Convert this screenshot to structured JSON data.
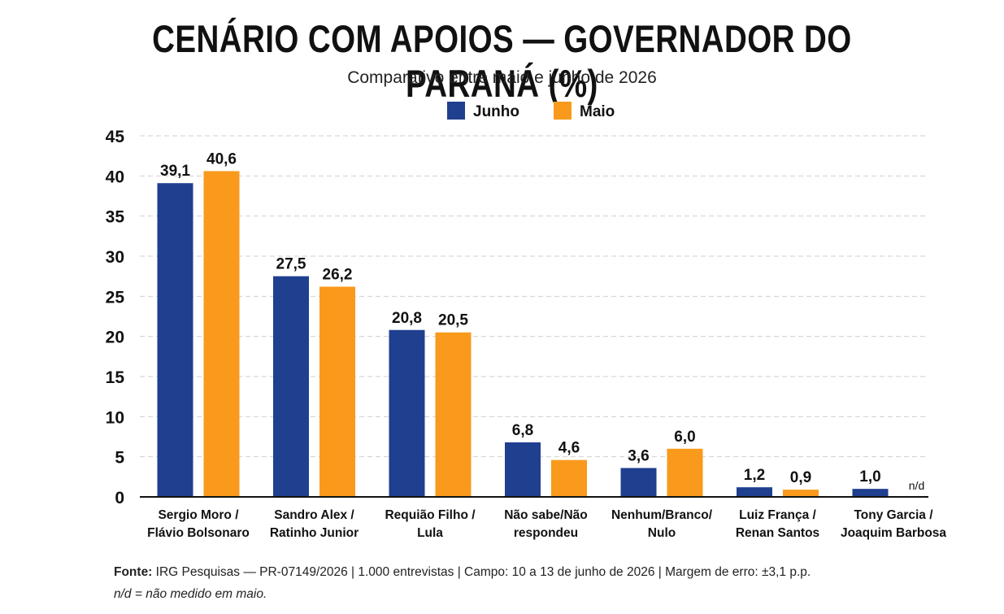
{
  "chart_data": {
    "type": "bar",
    "title": "CENÁRIO COM APOIOS — GOVERNADOR DO PARANÁ (%)",
    "subtitle": "Comparativo entre maio e junho de 2026",
    "categories": [
      [
        "Sergio Moro /",
        "Flávio Bolsonaro"
      ],
      [
        "Sandro Alex /",
        "Ratinho Junior"
      ],
      [
        "Requião Filho /",
        "Lula"
      ],
      [
        "Não sabe/Não",
        "respondeu"
      ],
      [
        "Nenhum/Branco/",
        "Nulo"
      ],
      [
        "Luiz França /",
        "Renan Santos"
      ],
      [
        "Tony Garcia /",
        "Joaquim Barbosa"
      ]
    ],
    "series": [
      {
        "name": "Junho",
        "color": "#1f3f8f",
        "values": [
          39.1,
          27.5,
          20.8,
          6.8,
          3.6,
          1.2,
          1.0
        ],
        "labels": [
          "39,1",
          "27,5",
          "20,8",
          "6,8",
          "3,6",
          "1,2",
          "1,0"
        ]
      },
      {
        "name": "Maio",
        "color": "#f99a1c",
        "values": [
          40.6,
          26.2,
          20.5,
          4.6,
          6.0,
          0.9,
          null
        ],
        "labels": [
          "40,6",
          "26,2",
          "20,5",
          "4,6",
          "6,0",
          "0,9",
          "n/d"
        ]
      }
    ],
    "ylim": [
      0,
      45
    ],
    "yticks": [
      0,
      5,
      10,
      15,
      20,
      25,
      30,
      35,
      40,
      45
    ],
    "xlabel": "",
    "ylabel": "",
    "grid": true,
    "legend_position": "top-center"
  },
  "footer": {
    "source_label": "Fonte:",
    "source_text": " IRG Pesquisas — PR-07149/2026  |  1.000 entrevistas  |  Campo: 10 a 13 de junho de 2026  |  Margem de erro: ±3,1 p.p.",
    "note": "n/d = não medido em maio."
  }
}
